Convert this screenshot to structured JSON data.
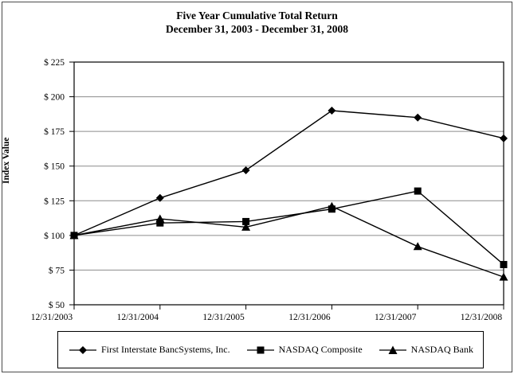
{
  "figure": {
    "title_line1": "Five Year Cumulative Total Return",
    "title_line2": "December 31, 2003 - December 31, 2008"
  },
  "chart_data": {
    "type": "line",
    "title": "Five Year Cumulative Total Return",
    "subtitle": "December 31, 2003 - December 31, 2008",
    "xlabel": "",
    "ylabel": "Index Value",
    "x": [
      "12/31/2003",
      "12/31/2004",
      "12/31/2005",
      "12/31/2006",
      "12/31/2007",
      "12/31/2008"
    ],
    "series": [
      {
        "name": "First Interstate BancSystems, Inc.",
        "marker": "diamond",
        "values": [
          100,
          127,
          147,
          190,
          185,
          170
        ]
      },
      {
        "name": "NASDAQ Composite",
        "marker": "square",
        "values": [
          100,
          109,
          110,
          119,
          132,
          79
        ]
      },
      {
        "name": "NASDAQ Bank",
        "marker": "triangle",
        "values": [
          100,
          112,
          106,
          121,
          92,
          70
        ]
      }
    ],
    "ylim": [
      50,
      225
    ],
    "ytick_step": 25,
    "ytick_prefix": "$ ",
    "grid": true,
    "legend_position": "bottom",
    "line_color": "#000000",
    "grid_color": "#8c8c8c",
    "axis_color": "#000000"
  },
  "legend": {
    "items": [
      {
        "label": "First Interstate BancSystems, Inc.",
        "marker": "diamond"
      },
      {
        "label": "NASDAQ Composite",
        "marker": "square"
      },
      {
        "label": "NASDAQ Bank",
        "marker": "triangle"
      }
    ]
  }
}
